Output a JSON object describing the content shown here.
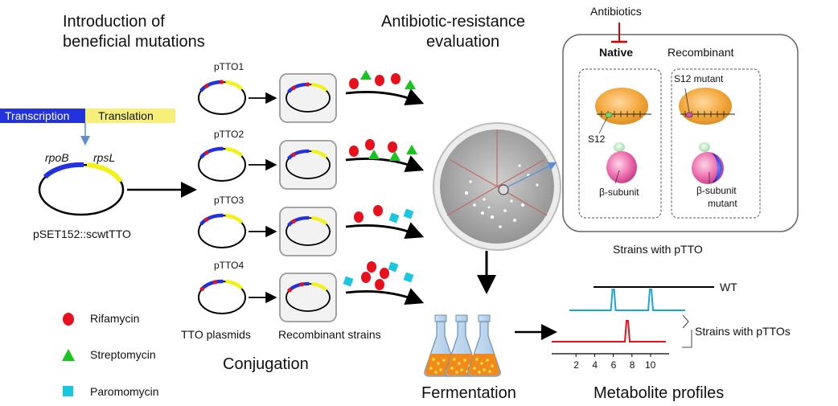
{
  "headers": {
    "intro_line1": "Introduction of",
    "intro_line2": "beneficial mutations",
    "eval_line1": "Antibiotic-resistance",
    "eval_line2": "evaluation",
    "conjugation": "Conjugation",
    "fermentation": "Fermentation",
    "metabolite": "Metabolite profiles"
  },
  "construct": {
    "transcription": "Transcription",
    "translation": "Translation",
    "gene1": "rpoB",
    "gene2": "rpsL",
    "plasmid_name": "pSET152::scwtTTO"
  },
  "plasmids": [
    {
      "label": "pTTO1"
    },
    {
      "label": "pTTO2"
    },
    {
      "label": "pTTO3"
    },
    {
      "label": "pTTO4"
    }
  ],
  "columns": {
    "tto_plasmids": "TTO plasmids",
    "recombinant_strains": "Recombinant strains"
  },
  "legend": [
    {
      "label": "Rifamycin",
      "color": "#e8101c",
      "shape": "circle"
    },
    {
      "label": "Streptomycin",
      "color": "#19c41f",
      "shape": "triangle"
    },
    {
      "label": "Paromomycin",
      "color": "#19c8de",
      "shape": "square"
    }
  ],
  "panel": {
    "antibiotics": "Antibiotics",
    "native": "Native",
    "recombinant": "Recombinant",
    "s12": "S12",
    "s12_mutant": "S12 mutant",
    "beta_subunit": "β-subunit",
    "beta_mutant_line1": "β-subunit",
    "beta_mutant_line2": "mutant",
    "caption": "Strains with pTTO"
  },
  "chart_data": {
    "type": "line",
    "x_ticks": [
      "2",
      "4",
      "6",
      "8",
      "10"
    ],
    "series": [
      {
        "name": "WT",
        "color": "#000000",
        "peaks": []
      },
      {
        "color": "#1aa6d6",
        "peaks": [
          6,
          10
        ]
      },
      {
        "color": "#e8101c",
        "peaks": [
          7.5
        ]
      }
    ],
    "group_label": "Strains with pTTOs"
  },
  "colors": {
    "blue_gene": "#2233dd",
    "yellow_gene": "#f2f21a",
    "arrow_blue": "#5b8fd6",
    "inhibit_red": "#e00000"
  }
}
